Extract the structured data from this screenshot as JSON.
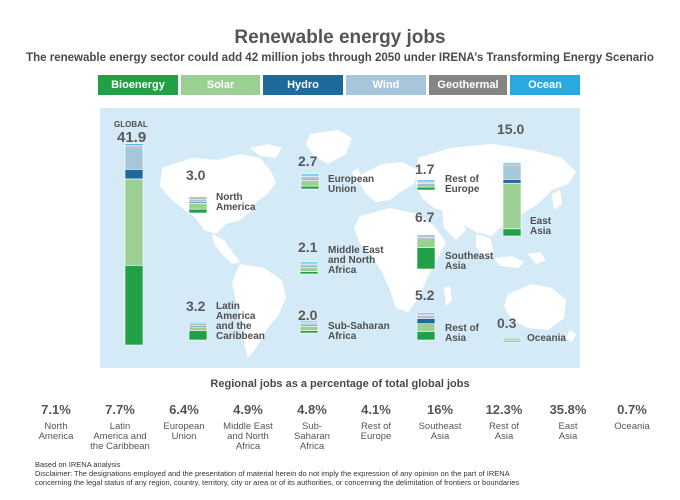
{
  "title": "Renewable energy jobs",
  "subtitle": "The renewable energy sector could add 42 million jobs through 2050 under IRENA’s Transforming Energy Scenario",
  "legend": [
    {
      "label": "Bioenergy",
      "color": "#22a045",
      "icon": "legend-swatch"
    },
    {
      "label": "Solar",
      "color": "#9ccf93",
      "icon": "legend-swatch"
    },
    {
      "label": "Hydro",
      "color": "#1c6b9c",
      "icon": "legend-swatch"
    },
    {
      "label": "Wind",
      "color": "#a7c5db",
      "icon": "legend-swatch"
    },
    {
      "label": "Geothermal",
      "color": "#858585",
      "icon": "legend-swatch"
    },
    {
      "label": "Ocean",
      "color": "#29a9e1",
      "icon": "legend-swatch"
    }
  ],
  "global_tag": "GLOBAL",
  "chart_data": {
    "type": "bar",
    "stacked": true,
    "unit": "million jobs",
    "series_order": [
      "Bioenergy",
      "Solar",
      "Hydro",
      "Wind",
      "Geothermal",
      "Ocean"
    ],
    "colors": {
      "Bioenergy": "#22a045",
      "Solar": "#9ccf93",
      "Hydro": "#1c6b9c",
      "Wind": "#a7c5db",
      "Geothermal": "#858585",
      "Ocean": "#29a9e1"
    },
    "regions": [
      {
        "key": "global",
        "name": "",
        "total": "41.9",
        "segments": {
          "Bioenergy": 16.6,
          "Solar": 18.0,
          "Hydro": 2.0,
          "Wind": 4.7,
          "Geothermal": 0.3,
          "Ocean": 0.3
        }
      },
      {
        "key": "north_america",
        "name": "North\nAmerica",
        "total": "3.0",
        "segments": {
          "Bioenergy": 0.8,
          "Solar": 1.2,
          "Hydro": 0.3,
          "Wind": 0.6,
          "Geothermal": 0.05,
          "Ocean": 0.05
        }
      },
      {
        "key": "european_union",
        "name": "European\nUnion",
        "total": "2.7",
        "segments": {
          "Bioenergy": 0.6,
          "Solar": 1.2,
          "Hydro": 0.2,
          "Wind": 0.6,
          "Geothermal": 0.05,
          "Ocean": 0.05
        }
      },
      {
        "key": "rest_of_europe",
        "name": "Rest of\nEurope",
        "total": "1.7",
        "segments": {
          "Bioenergy": 0.6,
          "Solar": 0.5,
          "Hydro": 0.2,
          "Wind": 0.3,
          "Geothermal": 0.05,
          "Ocean": 0.05
        }
      },
      {
        "key": "middle_east_north_africa",
        "name": "Middle East\nand North\nAfrica",
        "total": "2.1",
        "segments": {
          "Bioenergy": 0.5,
          "Solar": 0.9,
          "Hydro": 0.2,
          "Wind": 0.4,
          "Geothermal": 0.05,
          "Ocean": 0.05
        }
      },
      {
        "key": "southeast_asia",
        "name": "Southeast\nAsia",
        "total": "6.7",
        "segments": {
          "Bioenergy": 4.5,
          "Solar": 1.6,
          "Hydro": 0.3,
          "Wind": 0.2,
          "Geothermal": 0.05,
          "Ocean": 0.05
        }
      },
      {
        "key": "latin_america_caribbean",
        "name": "Latin\nAmerica\nand the\nCaribbean",
        "total": "3.2",
        "segments": {
          "Bioenergy": 2.0,
          "Solar": 0.6,
          "Hydro": 0.3,
          "Wind": 0.2,
          "Geothermal": 0.05,
          "Ocean": 0.05
        }
      },
      {
        "key": "sub_saharan_africa",
        "name": "Sub-Saharan\nAfrica",
        "total": "2.0",
        "segments": {
          "Bioenergy": 0.5,
          "Solar": 0.9,
          "Hydro": 0.2,
          "Wind": 0.3,
          "Geothermal": 0.05,
          "Ocean": 0.05
        }
      },
      {
        "key": "rest_of_asia",
        "name": "Rest of\nAsia",
        "total": "5.2",
        "segments": {
          "Bioenergy": 1.8,
          "Solar": 1.6,
          "Hydro": 1.1,
          "Wind": 0.6,
          "Geothermal": 0.05,
          "Ocean": 0.05
        }
      },
      {
        "key": "east_asia",
        "name": "East\nAsia",
        "total": "15.0",
        "segments": {
          "Bioenergy": 1.5,
          "Solar": 9.5,
          "Hydro": 0.8,
          "Wind": 3.0,
          "Geothermal": 0.1,
          "Ocean": 0.1
        }
      },
      {
        "key": "oceania",
        "name": "Oceania",
        "total": "0.3",
        "segments": {
          "Bioenergy": 0.12,
          "Solar": 0.1,
          "Hydro": 0.03,
          "Wind": 0.05,
          "Geothermal": 0.0,
          "Ocean": 0.0
        }
      }
    ]
  },
  "percentages": {
    "title": "Regional jobs as a percentage of total global jobs",
    "items": [
      {
        "value": "7.1%",
        "name": "North\nAmerica"
      },
      {
        "value": "7.7%",
        "name": "Latin\nAmerica and\nthe Caribbean"
      },
      {
        "value": "6.4%",
        "name": "European\nUnion"
      },
      {
        "value": "4.9%",
        "name": "Middle East\nand North\nAfrica"
      },
      {
        "value": "4.8%",
        "name": "Sub-\nSaharan\nAfrica"
      },
      {
        "value": "4.1%",
        "name": "Rest of\nEurope"
      },
      {
        "value": "16%",
        "name": "Southeast\nAsia"
      },
      {
        "value": "12.3%",
        "name": "Rest of\nAsia"
      },
      {
        "value": "35.8%",
        "name": "East\nAsia"
      },
      {
        "value": "0.7%",
        "name": "Oceania"
      }
    ]
  },
  "footer": {
    "based_on": "Based on IRENA analysis",
    "disclaimer_1": "Disclaimer: The designations employed and the presentation of material herein do not imply the expression of any opinion on the part of IRENA",
    "disclaimer_2": "concerning the legal status of any region, country, territory, city or area or of its authorities, or concerning the delimitation of frontiers or boundaries"
  }
}
